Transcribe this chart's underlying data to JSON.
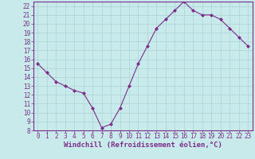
{
  "x": [
    0,
    1,
    2,
    3,
    4,
    5,
    6,
    7,
    8,
    9,
    10,
    11,
    12,
    13,
    14,
    15,
    16,
    17,
    18,
    19,
    20,
    21,
    22,
    23
  ],
  "y": [
    15.5,
    14.5,
    13.5,
    13.0,
    12.5,
    12.2,
    10.5,
    8.3,
    8.7,
    10.5,
    13.0,
    15.5,
    17.5,
    19.5,
    20.5,
    21.5,
    22.5,
    21.5,
    21.0,
    21.0,
    20.5,
    19.5,
    18.5,
    17.5
  ],
  "line_color": "#7b2d8b",
  "marker": "D",
  "marker_size": 2.0,
  "bg_color": "#c8eaea",
  "grid_color": "#b0d8d8",
  "xlabel": "Windchill (Refroidissement éolien,°C)",
  "ylim": [
    8,
    22.5
  ],
  "xlim": [
    -0.5,
    23.5
  ],
  "yticks": [
    8,
    9,
    10,
    11,
    12,
    13,
    14,
    15,
    16,
    17,
    18,
    19,
    20,
    21,
    22
  ],
  "xticks": [
    0,
    1,
    2,
    3,
    4,
    5,
    6,
    7,
    8,
    9,
    10,
    11,
    12,
    13,
    14,
    15,
    16,
    17,
    18,
    19,
    20,
    21,
    22,
    23
  ],
  "tick_fontsize": 5.5,
  "xlabel_fontsize": 6.5,
  "spine_color": "#7b2d8b"
}
